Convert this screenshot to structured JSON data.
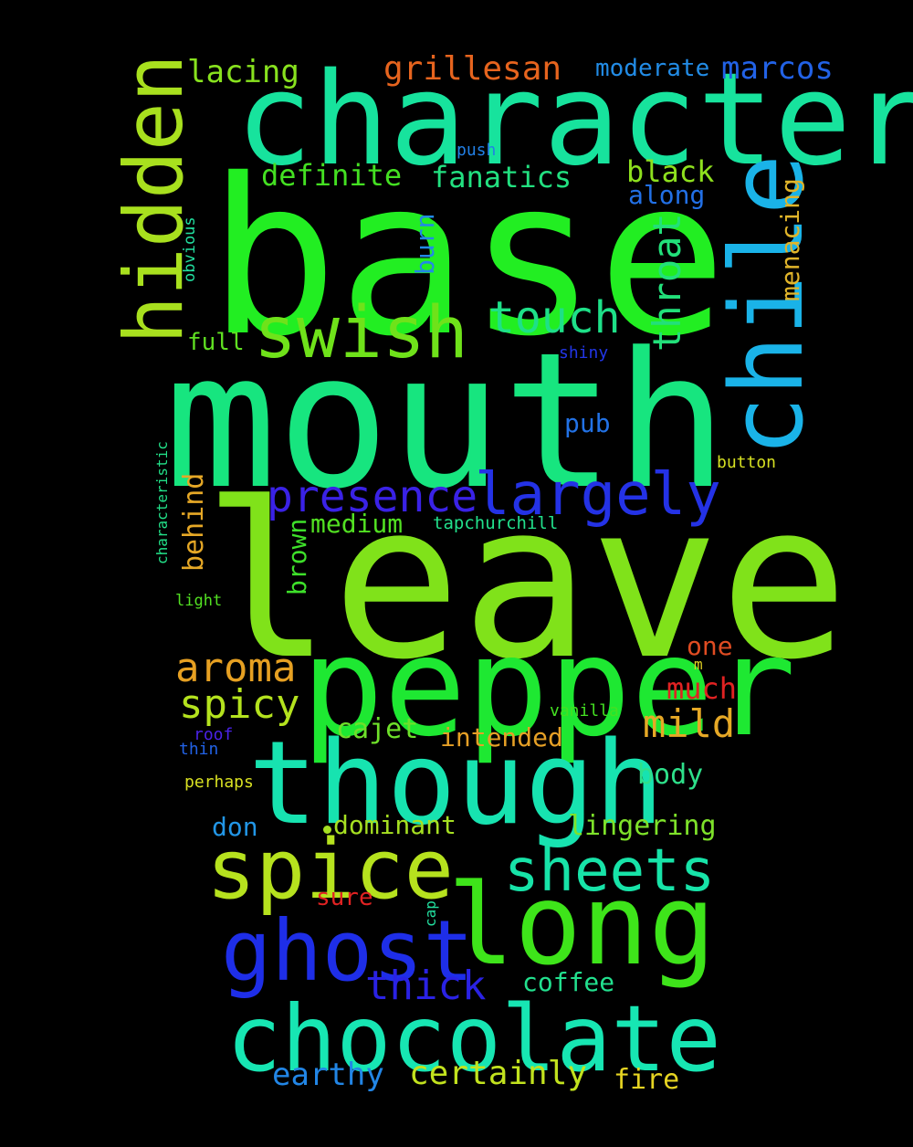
{
  "words": [
    {
      "text": "base",
      "color": "#22ee22"
    },
    {
      "text": "mouth",
      "color": "#17e57f"
    },
    {
      "text": "leave",
      "color": "#80e21a"
    },
    {
      "text": "character",
      "color": "#17e39d"
    },
    {
      "text": "pepper",
      "color": "#1ee832"
    },
    {
      "text": "though",
      "color": "#17e3b0"
    },
    {
      "text": "chile",
      "color": "#1ab3e8"
    },
    {
      "text": "hidden",
      "color": "#a8e01e"
    },
    {
      "text": "long",
      "color": "#3ee41a"
    },
    {
      "text": "spice",
      "color": "#b6e21e"
    },
    {
      "text": "chocolate",
      "color": "#17e6b3"
    },
    {
      "text": "ghost",
      "color": "#1e2ee8"
    },
    {
      "text": "swish",
      "color": "#6fe21a"
    },
    {
      "text": "largely",
      "color": "#2432e6"
    },
    {
      "text": "sheets",
      "color": "#17e3a8"
    },
    {
      "text": "presence",
      "color": "#3a22e6"
    },
    {
      "text": "touch",
      "color": "#1ee088"
    },
    {
      "text": "throat",
      "color": "#22e07a"
    },
    {
      "text": "aroma",
      "color": "#e6a022"
    },
    {
      "text": "spicy",
      "color": "#b4e21e"
    },
    {
      "text": "thick",
      "color": "#2a22e4"
    },
    {
      "text": "grillesan",
      "color": "#e6641e"
    },
    {
      "text": "lacing",
      "color": "#88e21e"
    },
    {
      "text": "marcos",
      "color": "#2262e6"
    },
    {
      "text": "mild",
      "color": "#e6a826"
    },
    {
      "text": "certainly",
      "color": "#c2e21e"
    },
    {
      "text": "earthy",
      "color": "#2286e6"
    },
    {
      "text": "definite",
      "color": "#44e022"
    },
    {
      "text": "fanatics",
      "color": "#22e080"
    },
    {
      "text": "black",
      "color": "#8ee01e"
    },
    {
      "text": "much",
      "color": "#e02222"
    },
    {
      "text": "coffee",
      "color": "#22e08e"
    },
    {
      "text": "moderate",
      "color": "#228ce6"
    },
    {
      "text": "lingering",
      "color": "#7ee22a"
    },
    {
      "text": "dominant",
      "color": "#a6e022"
    },
    {
      "text": "intended",
      "color": "#e6a026"
    },
    {
      "text": "cajet",
      "color": "#6ee02a"
    },
    {
      "text": "body",
      "color": "#2ee08a"
    },
    {
      "text": "fire",
      "color": "#e6d422"
    },
    {
      "text": "medium",
      "color": "#52e022"
    },
    {
      "text": "behind",
      "color": "#e6a826"
    },
    {
      "text": "menacing",
      "color": "#e0b42a"
    },
    {
      "text": "along",
      "color": "#2270e6"
    },
    {
      "text": "burn",
      "color": "#2288e6"
    },
    {
      "text": "brown",
      "color": "#3ee02a"
    },
    {
      "text": "pub",
      "color": "#2272e6"
    },
    {
      "text": "one",
      "color": "#e04c22"
    },
    {
      "text": "full",
      "color": "#60e022"
    },
    {
      "text": "don",
      "color": "#2296e6"
    },
    {
      "text": "sure",
      "color": "#e02222"
    },
    {
      "text": "tapchurchill",
      "color": "#22e08c"
    },
    {
      "text": "button",
      "color": "#d6e022"
    },
    {
      "text": "vanilla",
      "color": "#44e022"
    },
    {
      "text": "perhaps",
      "color": "#d8e022"
    },
    {
      "text": "obvious",
      "color": "#22e0a0"
    },
    {
      "text": "characteristic",
      "color": "#22e088"
    },
    {
      "text": "light",
      "color": "#52e022"
    },
    {
      "text": "shiny",
      "color": "#2236e6"
    },
    {
      "text": "push",
      "color": "#2280e6"
    },
    {
      "text": "roof",
      "color": "#4a22e6"
    },
    {
      "text": "thin",
      "color": "#2262e6"
    },
    {
      "text": "cap",
      "color": "#22e0a0"
    },
    {
      "text": "m",
      "color": "#e0d022"
    }
  ]
}
